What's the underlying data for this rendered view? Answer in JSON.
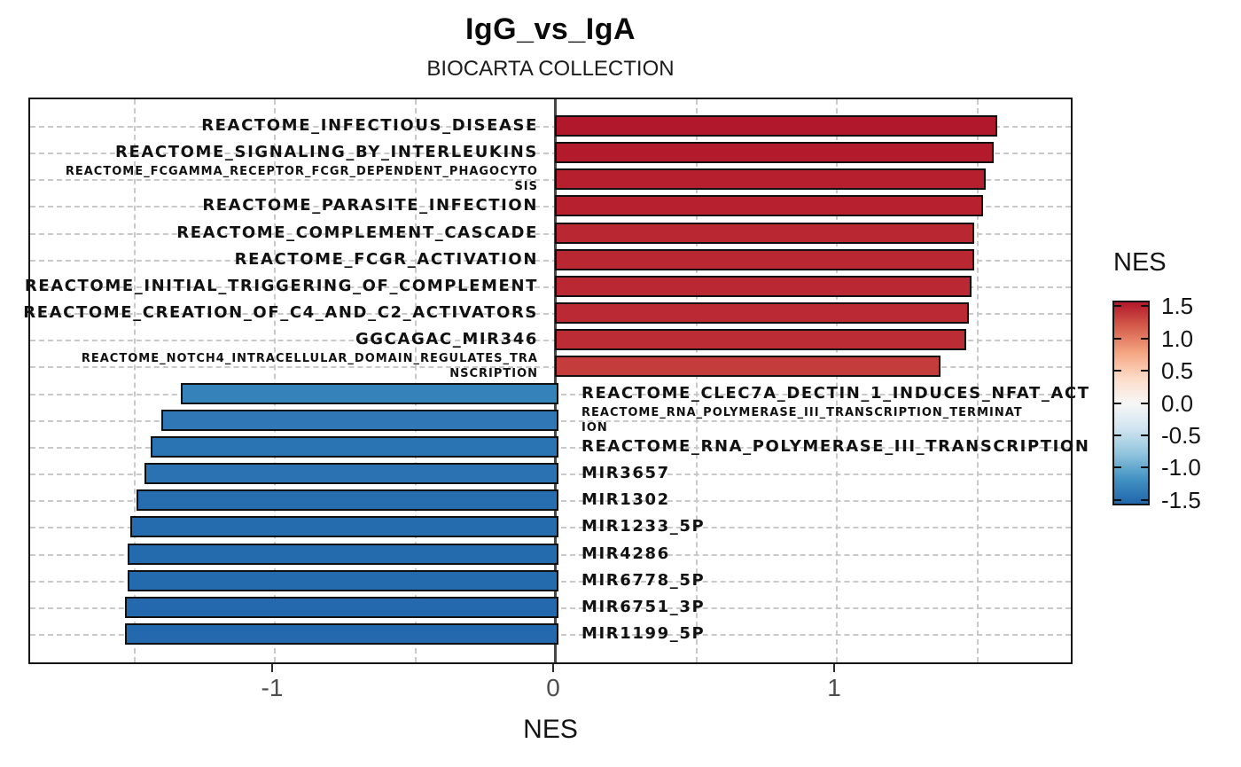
{
  "chart_data": {
    "type": "bar",
    "orientation": "horizontal",
    "title": "IgG_vs_IgA",
    "subtitle": "BIOCARTA COLLECTION",
    "xlabel": "NES",
    "x_ticks": [
      -1,
      0,
      1
    ],
    "xlim": [
      -1.86,
      1.86
    ],
    "grid_x": [
      -1.5,
      -1,
      -0.5,
      0.5,
      1,
      1.5
    ],
    "grid_style": "dashed",
    "legend": {
      "title": "NES",
      "ticks": [
        "1.5",
        "1.0",
        "0.5",
        "0.0",
        "-0.5",
        "-1.0",
        "-1.5"
      ],
      "tick_values": [
        1.5,
        1.0,
        0.5,
        0.0,
        -0.5,
        -1.0,
        -1.5
      ],
      "domain": [
        -1.56,
        1.56
      ],
      "position": "right"
    },
    "colormap": [
      {
        "t": 0.0,
        "c": "#2166AC"
      },
      {
        "t": 0.125,
        "c": "#4393C3"
      },
      {
        "t": 0.25,
        "c": "#92C5DE"
      },
      {
        "t": 0.375,
        "c": "#D1E5F0"
      },
      {
        "t": 0.5,
        "c": "#F7F7F7"
      },
      {
        "t": 0.625,
        "c": "#FDDBC7"
      },
      {
        "t": 0.75,
        "c": "#F4A582"
      },
      {
        "t": 0.875,
        "c": "#D6604D"
      },
      {
        "t": 1.0,
        "c": "#B2182B"
      }
    ],
    "bars": [
      {
        "lines": [
          "REACTOME_INFECTIOUS_DISEASE"
        ],
        "nes": 1.56,
        "small": false
      },
      {
        "lines": [
          "REACTOME_SIGNALING_BY_INTERLEUKINS"
        ],
        "nes": 1.55,
        "small": false
      },
      {
        "lines": [
          "REACTOME_FCGAMMA_RECEPTOR_FCGR_DEPENDENT_PHAGOCYTO",
          "SIS"
        ],
        "nes": 1.52,
        "small": true
      },
      {
        "lines": [
          "REACTOME_PARASITE_INFECTION"
        ],
        "nes": 1.51,
        "small": false
      },
      {
        "lines": [
          "REACTOME_COMPLEMENT_CASCADE"
        ],
        "nes": 1.48,
        "small": false
      },
      {
        "lines": [
          "REACTOME_FCGR_ACTIVATION"
        ],
        "nes": 1.48,
        "small": false
      },
      {
        "lines": [
          "REACTOME_INITIAL_TRIGGERING_OF_COMPLEMENT"
        ],
        "nes": 1.47,
        "small": false
      },
      {
        "lines": [
          "REACTOME_CREATION_OF_C4_AND_C2_ACTIVATORS"
        ],
        "nes": 1.46,
        "small": false
      },
      {
        "lines": [
          "GGCAGAC_MIR346"
        ],
        "nes": 1.45,
        "small": false
      },
      {
        "lines": [
          "REACTOME_NOTCH4_INTRACELLULAR_DOMAIN_REGULATES_TRA",
          "NSCRIPTION"
        ],
        "nes": 1.36,
        "small": true
      },
      {
        "lines": [
          "REACTOME_CLEC7A_DECTIN_1_INDUCES_NFAT_ACT"
        ],
        "nes": -1.33,
        "small": false
      },
      {
        "lines": [
          "REACTOME_RNA_POLYMERASE_III_TRANSCRIPTION_TERMINAT",
          "ION"
        ],
        "nes": -1.4,
        "small": true
      },
      {
        "lines": [
          "REACTOME_RNA_POLYMERASE_III_TRANSCRIPTION"
        ],
        "nes": -1.44,
        "small": false
      },
      {
        "lines": [
          "MIR3657"
        ],
        "nes": -1.46,
        "small": false
      },
      {
        "lines": [
          "MIR1302"
        ],
        "nes": -1.49,
        "small": false
      },
      {
        "lines": [
          "MIR1233_5P"
        ],
        "nes": -1.51,
        "small": false
      },
      {
        "lines": [
          "MIR4286"
        ],
        "nes": -1.52,
        "small": false
      },
      {
        "lines": [
          "MIR6778_5P"
        ],
        "nes": -1.52,
        "small": false
      },
      {
        "lines": [
          "MIR6751_3P"
        ],
        "nes": -1.53,
        "small": false
      },
      {
        "lines": [
          "MIR1199_5P"
        ],
        "nes": -1.53,
        "small": false
      }
    ]
  }
}
